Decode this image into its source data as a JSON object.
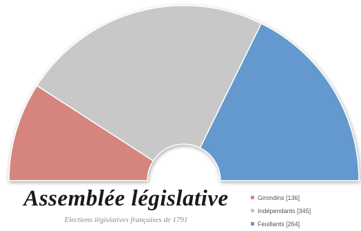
{
  "chart_data": {
    "type": "pie",
    "subtype": "half-donut (parliament)",
    "title": "Assemblée législative",
    "subtitle": "Elections législatives françaises de 1791",
    "series": [
      {
        "name": "Girondins [136]",
        "value": 136,
        "color": "#d6857e"
      },
      {
        "name": "Indépendants [345]",
        "value": 345,
        "color": "#c8c8c8"
      },
      {
        "name": "Feuillants [264]",
        "value": 264,
        "color": "#6499ce"
      }
    ],
    "legend_position": "bottom-right"
  }
}
